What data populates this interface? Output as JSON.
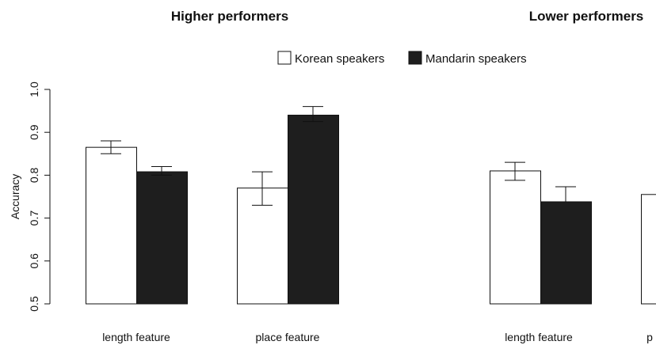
{
  "chart_data": {
    "type": "bar",
    "panels": [
      {
        "title": "Higher performers",
        "categories": [
          "length feature",
          "place feature"
        ],
        "series": [
          {
            "name": "Korean speakers",
            "values": [
              0.865,
              0.77
            ],
            "error_low": [
              0.85,
              0.73
            ],
            "error_high": [
              0.88,
              0.808
            ]
          },
          {
            "name": "Mandarin speakers",
            "values": [
              0.808,
              0.94
            ],
            "error_low": [
              0.8,
              0.925
            ],
            "error_high": [
              0.82,
              0.96
            ]
          }
        ]
      },
      {
        "title": "Lower performers",
        "categories": [
          "length feature",
          "p"
        ],
        "series": [
          {
            "name": "Korean speakers",
            "values": [
              0.81,
              0.755
            ],
            "error_low": [
              0.788,
              null
            ],
            "error_high": [
              0.83,
              null
            ]
          },
          {
            "name": "Mandarin speakers",
            "values": [
              0.738,
              null
            ],
            "error_low": [
              0.738,
              null
            ],
            "error_high": [
              0.773,
              null
            ]
          }
        ]
      }
    ],
    "ylabel": "Accuracy",
    "ylim": [
      0.5,
      1.0
    ],
    "yticks": [
      "0.5",
      "0.6",
      "0.7",
      "0.8",
      "0.9",
      "1.0"
    ],
    "legend": {
      "placement": "top-center",
      "entries": [
        {
          "name": "Korean speakers",
          "color": "#ffffff"
        },
        {
          "name": "Mandarin speakers",
          "color": "#1e1e1e"
        }
      ]
    },
    "grid": false
  }
}
